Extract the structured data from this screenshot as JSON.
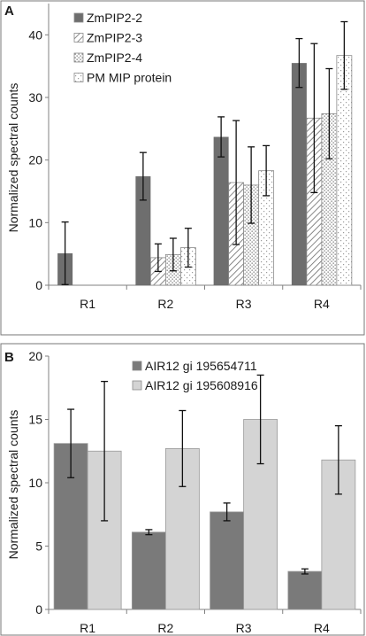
{
  "chart_data": [
    {
      "panel": "A",
      "type": "bar",
      "categories": [
        "R1",
        "R2",
        "R3",
        "R4"
      ],
      "ylabel": "Normalized spectral counts",
      "xlabel": "",
      "ylim": [
        0,
        45
      ],
      "yticks": [
        0,
        10,
        20,
        30,
        40
      ],
      "grid": false,
      "legend_position": "top-left",
      "series": [
        {
          "name": "ZmPIP2-2",
          "pattern": "solid",
          "color": "#6e6e6e",
          "values": [
            5.1,
            17.4,
            23.7,
            35.5
          ],
          "errors": [
            5.0,
            3.8,
            3.2,
            3.9
          ]
        },
        {
          "name": "ZmPIP2-3",
          "pattern": "diagonal-hatch",
          "color": "#8c8c8c",
          "values": [
            0,
            4.4,
            16.4,
            26.7
          ],
          "errors": [
            0,
            2.2,
            9.9,
            11.9
          ]
        },
        {
          "name": "ZmPIP2-4",
          "pattern": "dots",
          "color": "#9a9a9a",
          "values": [
            0,
            4.9,
            16.0,
            27.4
          ],
          "errors": [
            0,
            2.6,
            6.1,
            7.2
          ]
        },
        {
          "name": "PM MIP protein",
          "pattern": "sparse-dots",
          "color": "#b0b0b0",
          "values": [
            0,
            6.0,
            18.3,
            36.7
          ],
          "errors": [
            0,
            3.1,
            4.0,
            5.4
          ]
        }
      ]
    },
    {
      "panel": "B",
      "type": "bar",
      "categories": [
        "R1",
        "R2",
        "R3",
        "R4"
      ],
      "ylabel": "Normalized spectral counts",
      "xlabel": "",
      "ylim": [
        0,
        20
      ],
      "yticks": [
        0,
        5,
        10,
        15,
        20
      ],
      "grid": false,
      "legend_position": "top-center",
      "series": [
        {
          "name": "AIR12 gi 195654711",
          "color": "#7a7a7a",
          "values": [
            13.1,
            6.1,
            7.7,
            3.0
          ],
          "errors": [
            2.7,
            0.2,
            0.7,
            0.2
          ]
        },
        {
          "name": "AIR12 gi 195608916",
          "color": "#d4d4d4",
          "values": [
            12.5,
            12.7,
            15.0,
            11.8
          ],
          "errors": [
            5.5,
            3.0,
            3.5,
            2.7
          ]
        }
      ]
    }
  ]
}
